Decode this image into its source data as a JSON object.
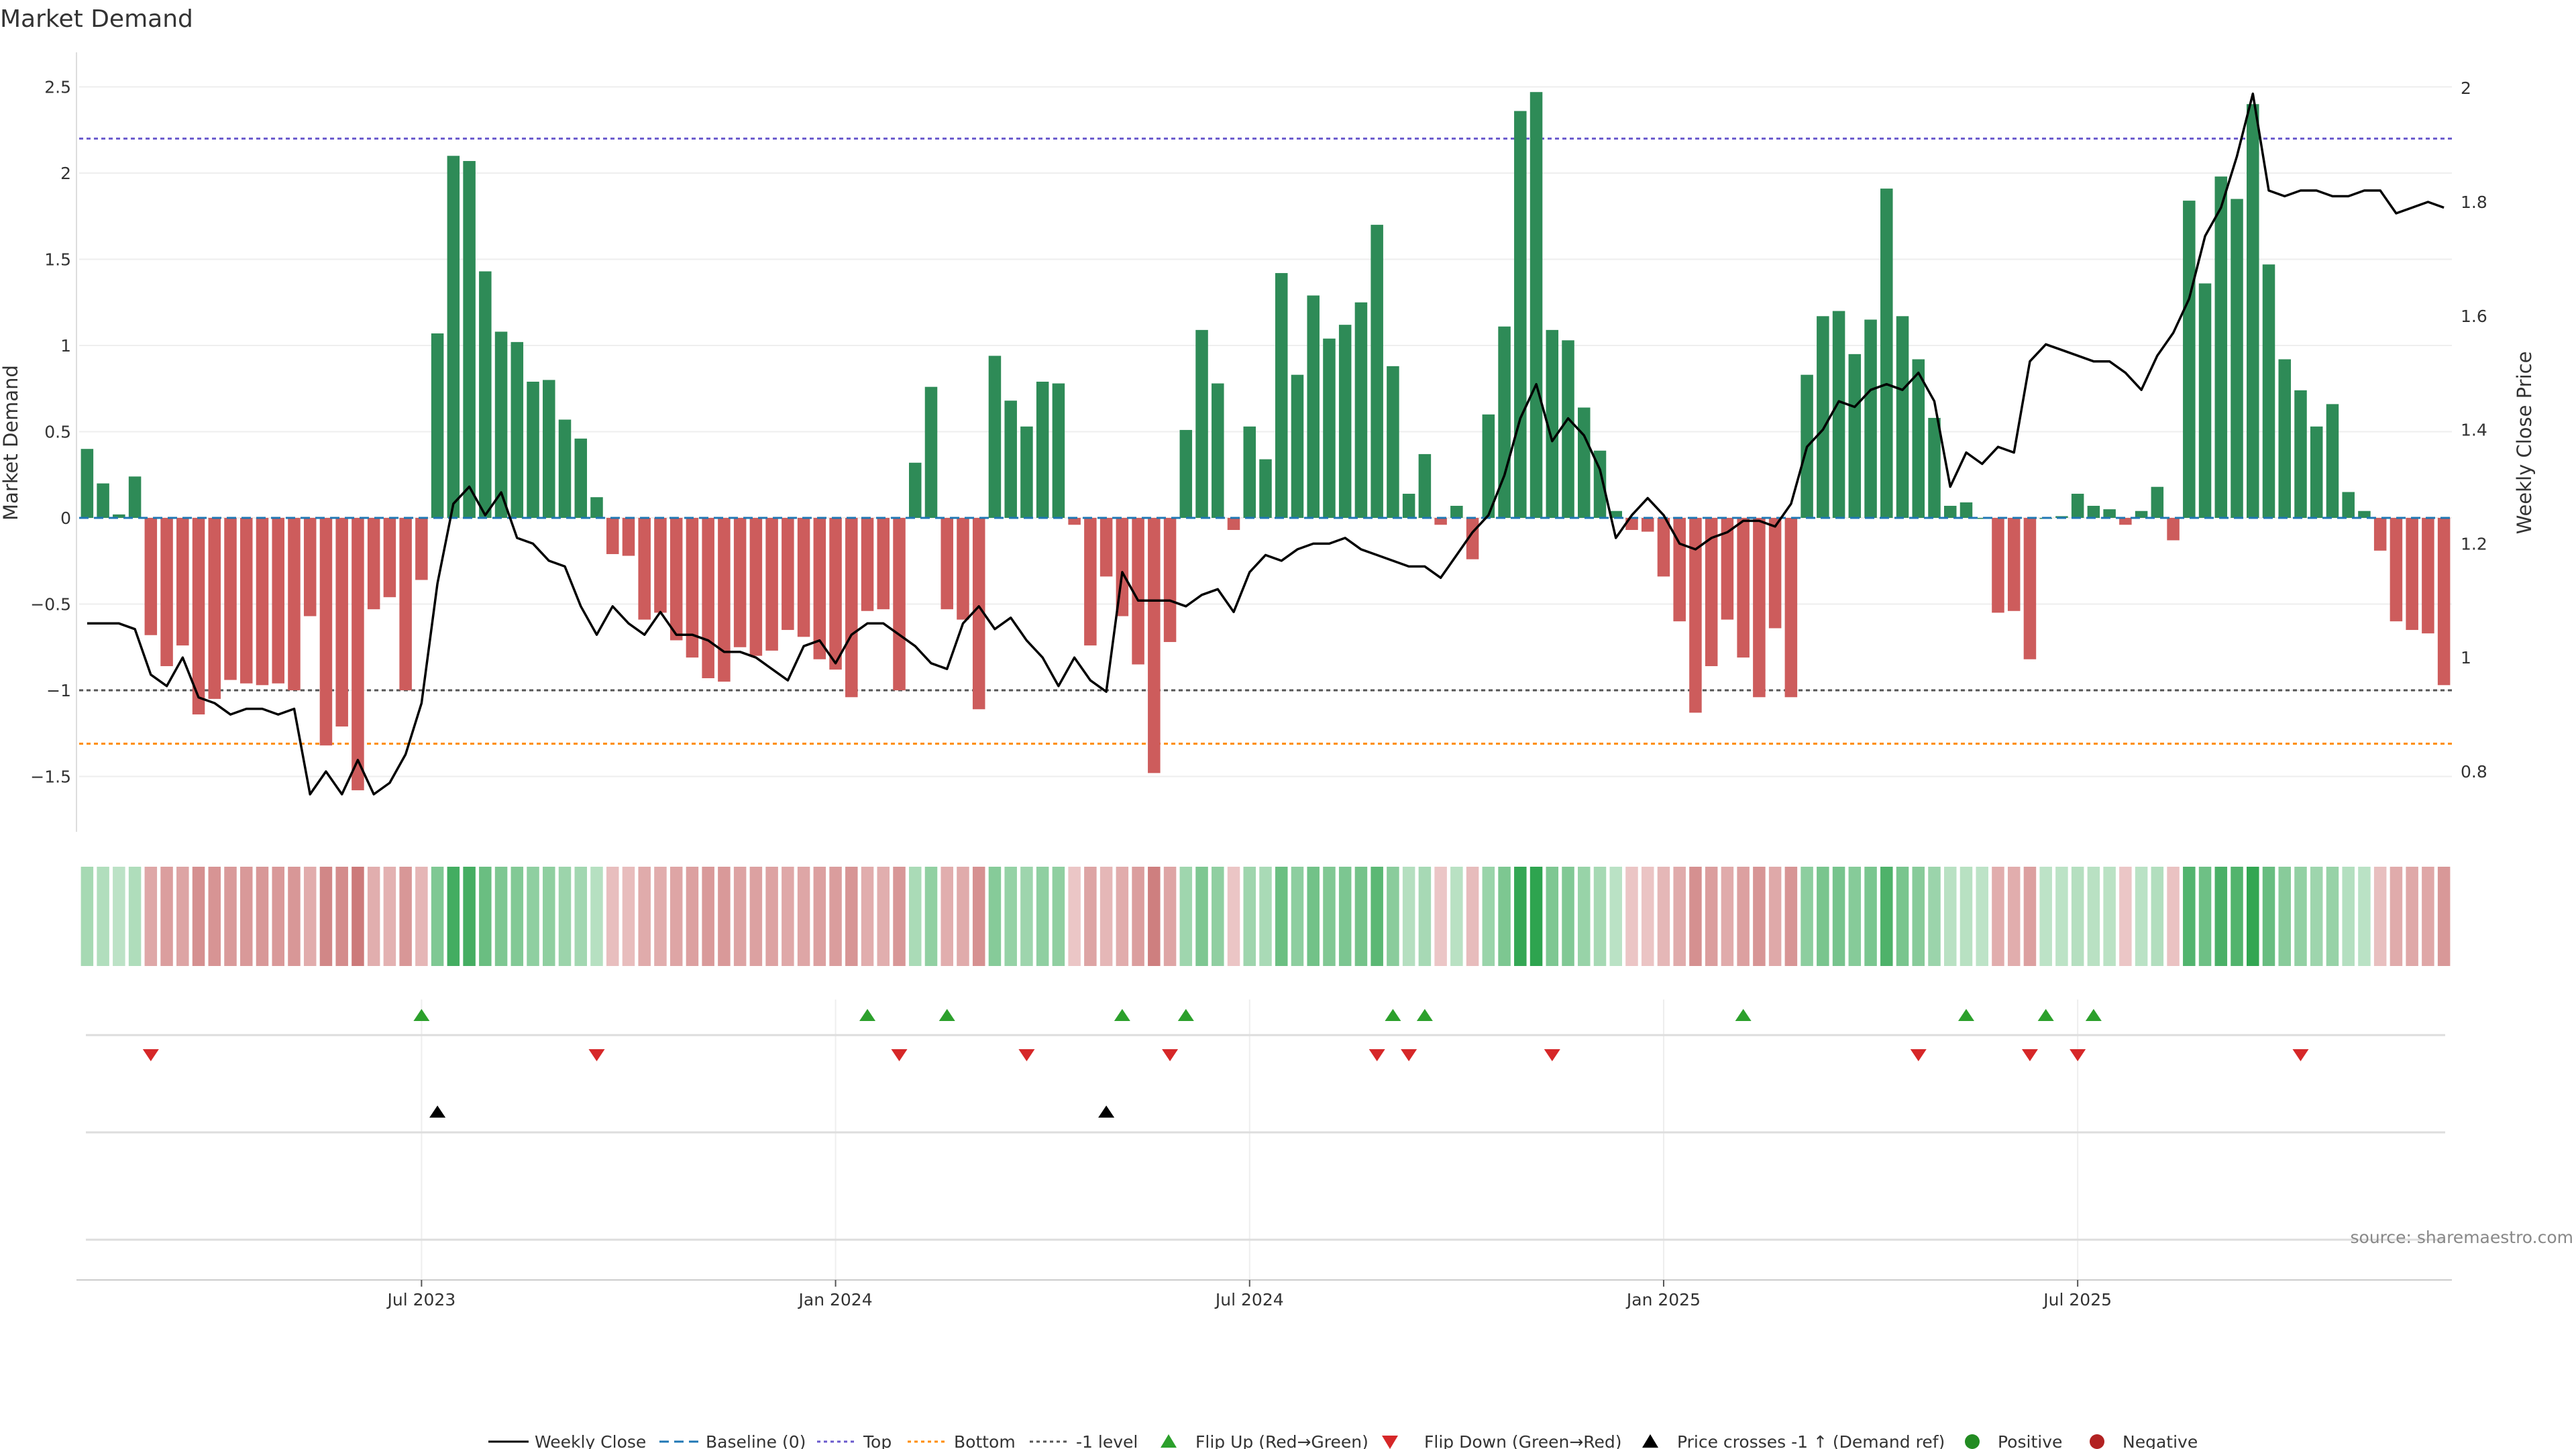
{
  "chart_data": {
    "type": "bar",
    "title": "Market Demand",
    "ylabel": "Market Demand",
    "y2label": "Weekly Close Price",
    "ylim": [
      -1.8,
      2.7
    ],
    "y2lim": [
      0.7,
      2.05
    ],
    "yticks": [
      -1.5,
      -1,
      -0.5,
      0,
      0.5,
      1,
      1.5,
      2,
      2.5
    ],
    "ytick_labels": [
      "−1.5",
      "−1",
      "−0.5",
      "0",
      "0.5",
      "1",
      "1.5",
      "2",
      "2.5"
    ],
    "y2ticks": [
      0.8,
      1,
      1.2,
      1.4,
      1.6,
      1.8,
      2
    ],
    "y2tick_labels": [
      "0.8",
      "1",
      "1.2",
      "1.4",
      "1.6",
      "1.8",
      "2"
    ],
    "x_week_range": [
      0,
      143
    ],
    "xtick_weeks": [
      21,
      47,
      73,
      99,
      125
    ],
    "xtick_labels": [
      "Jul 2023",
      "Jan 2024",
      "Jul 2024",
      "Jan 2025",
      "Jul 2025"
    ],
    "reference_lines": {
      "baseline": 0,
      "top": 2.2,
      "bottom": -1.31,
      "minus_one_level": -1
    },
    "colors": {
      "positive": "#2e8b57",
      "negative": "#cd5c5c",
      "price_line": "#000000",
      "baseline": "#1f77b4",
      "top": "#6a5acd",
      "bottom": "#ff8c00",
      "minus_one": "#555555",
      "flip_up": "#2ca02c",
      "flip_down": "#d62728",
      "positive_dot": "#228b22",
      "negative_dot": "#b22222"
    },
    "demand": [
      0.4,
      0.2,
      0.02,
      0.24,
      -0.68,
      -0.86,
      -0.74,
      -1.14,
      -1.05,
      -0.94,
      -0.96,
      -0.97,
      -0.96,
      -1.0,
      -0.57,
      -1.32,
      -1.21,
      -1.58,
      -0.53,
      -0.46,
      -1.0,
      -0.36,
      1.07,
      2.1,
      2.07,
      1.43,
      1.08,
      1.02,
      0.79,
      0.8,
      0.57,
      0.46,
      0.12,
      -0.21,
      -0.22,
      -0.59,
      -0.55,
      -0.71,
      -0.81,
      -0.93,
      -0.95,
      -0.75,
      -0.8,
      -0.77,
      -0.65,
      -0.69,
      -0.82,
      -0.88,
      -1.04,
      -0.54,
      -0.53,
      -1.0,
      0.32,
      0.76,
      -0.53,
      -0.59,
      -1.11,
      0.94,
      0.68,
      0.53,
      0.79,
      0.78,
      -0.04,
      -0.74,
      -0.34,
      -0.57,
      -0.85,
      -1.48,
      -0.72,
      0.51,
      1.09,
      0.78,
      -0.07,
      0.53,
      0.34,
      1.42,
      0.83,
      1.29,
      1.04,
      1.12,
      1.25,
      1.7,
      0.88,
      0.14,
      0.37,
      -0.04,
      0.07,
      -0.24,
      0.6,
      1.11,
      2.36,
      2.47,
      1.09,
      1.03,
      0.64,
      0.39,
      0.04,
      -0.07,
      -0.08,
      -0.34,
      -0.6,
      -1.13,
      -0.86,
      -0.59,
      -0.81,
      -1.04,
      -0.64,
      -1.04,
      0.83,
      1.17,
      1.2,
      0.95,
      1.15,
      1.91,
      1.17,
      0.92,
      0.58,
      0.07,
      0.09,
      0.0,
      -0.55,
      -0.54,
      -0.82,
      0.0,
      0.01,
      0.14,
      0.07,
      0.05,
      -0.04,
      0.04,
      0.18,
      -0.13,
      1.84,
      1.36,
      1.98,
      1.85,
      2.4,
      1.47,
      0.92,
      0.74,
      0.53,
      0.66,
      0.15,
      0.04,
      -0.19,
      -0.6,
      -0.65,
      -0.67,
      -0.97
    ],
    "weekly_close": [
      1.06,
      1.06,
      1.06,
      1.05,
      0.97,
      0.95,
      1.0,
      0.93,
      0.92,
      0.9,
      0.91,
      0.91,
      0.9,
      0.91,
      0.76,
      0.8,
      0.76,
      0.82,
      0.76,
      0.78,
      0.83,
      0.92,
      1.13,
      1.27,
      1.3,
      1.25,
      1.29,
      1.21,
      1.2,
      1.17,
      1.16,
      1.09,
      1.04,
      1.09,
      1.06,
      1.04,
      1.08,
      1.04,
      1.04,
      1.03,
      1.01,
      1.01,
      1.0,
      0.98,
      0.96,
      1.02,
      1.03,
      0.99,
      1.04,
      1.06,
      1.06,
      1.04,
      1.02,
      0.99,
      0.98,
      1.06,
      1.09,
      1.05,
      1.07,
      1.03,
      1.0,
      0.95,
      1.0,
      0.96,
      0.94,
      1.15,
      1.1,
      1.1,
      1.1,
      1.09,
      1.11,
      1.12,
      1.08,
      1.15,
      1.18,
      1.17,
      1.19,
      1.2,
      1.2,
      1.21,
      1.19,
      1.18,
      1.17,
      1.16,
      1.16,
      1.14,
      1.18,
      1.22,
      1.25,
      1.32,
      1.42,
      1.48,
      1.38,
      1.42,
      1.39,
      1.33,
      1.21,
      1.25,
      1.28,
      1.25,
      1.2,
      1.19,
      1.21,
      1.22,
      1.24,
      1.24,
      1.23,
      1.27,
      1.37,
      1.4,
      1.45,
      1.44,
      1.47,
      1.48,
      1.47,
      1.5,
      1.45,
      1.3,
      1.36,
      1.34,
      1.37,
      1.36,
      1.52,
      1.55,
      1.54,
      1.53,
      1.52,
      1.52,
      1.5,
      1.47,
      1.53,
      1.57,
      1.63,
      1.74,
      1.79,
      1.88,
      1.99,
      1.82,
      1.81,
      1.82,
      1.82,
      1.81,
      1.81,
      1.82,
      1.82,
      1.78,
      1.79,
      1.8,
      1.79
    ],
    "flip_up_weeks": [
      21,
      49,
      54,
      65,
      69,
      82,
      84,
      104,
      118,
      123,
      126
    ],
    "flip_down_weeks": [
      4,
      32,
      51,
      59,
      68,
      81,
      83,
      92,
      115,
      122,
      125,
      139
    ],
    "price_cross_weeks": [
      22,
      64
    ],
    "legend": [
      "Weekly Close",
      "Baseline (0)",
      "Top",
      "Bottom",
      "-1 level",
      "Flip Up (Red→Green)",
      "Flip Down (Green→Red)",
      "Price crosses -1 ↑ (Demand ref)",
      "Positive",
      "Negative"
    ]
  },
  "source": "source: sharemaestro.com"
}
